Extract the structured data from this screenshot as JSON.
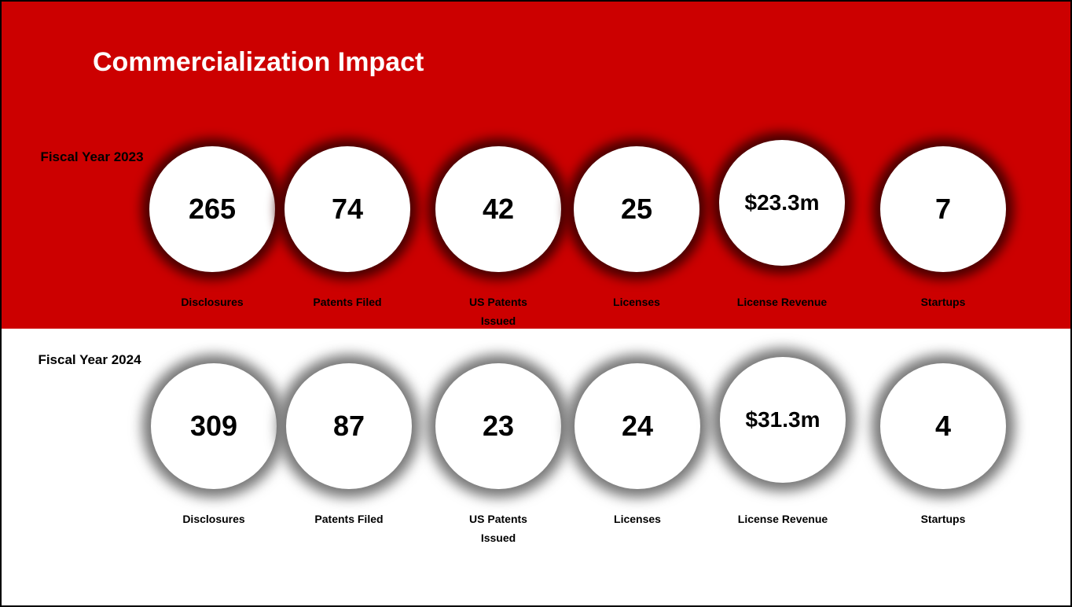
{
  "title": "Commercialization Impact",
  "years": [
    {
      "label": "Fiscal Year 2023",
      "metrics": [
        {
          "value": 265,
          "label": "Disclosures"
        },
        {
          "value": 74,
          "label": "Patents Filed"
        },
        {
          "value": 42,
          "label": "US Patents Issued"
        },
        {
          "value": 25,
          "label": "Licenses"
        },
        {
          "value": "$23.3m",
          "label": "License Revenue"
        },
        {
          "value": 7,
          "label": "Startups"
        }
      ]
    },
    {
      "label": "Fiscal Year 2024",
      "metrics": [
        {
          "value": 309,
          "label": "Disclosures"
        },
        {
          "value": 87,
          "label": "Patents Filed"
        },
        {
          "value": 23,
          "label": "US Patents Issued"
        },
        {
          "value": 24,
          "label": "Licenses"
        },
        {
          "value": "$31.3m",
          "label": "License Revenue"
        },
        {
          "value": 4,
          "label": "Startups"
        }
      ]
    }
  ]
}
